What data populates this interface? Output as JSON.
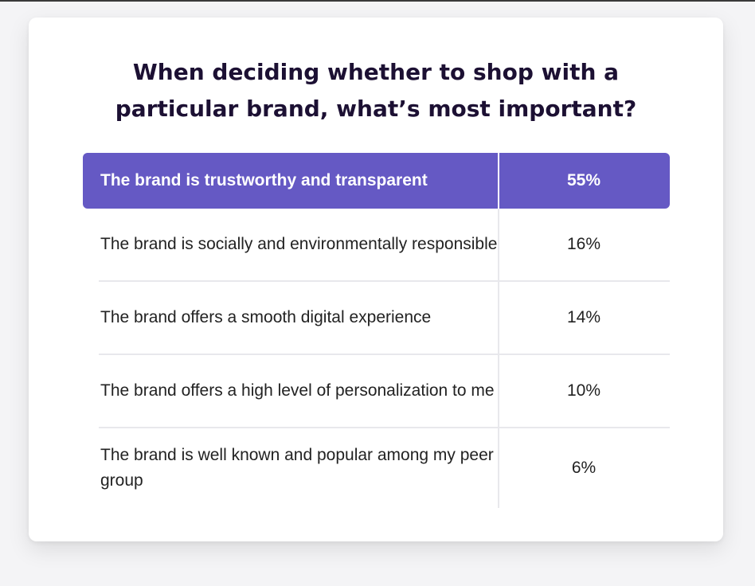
{
  "chart_data": {
    "type": "table",
    "title": "When deciding whether to shop with a particular brand, what’s most important?",
    "title_lines": [
      "When deciding whether to shop with a",
      "particular brand, what’s most important?"
    ],
    "rows": [
      {
        "label": "The brand is trustworthy and transparent",
        "value": "55%",
        "highlighted": true
      },
      {
        "label": "The brand is socially and environmentally responsible",
        "value": "16%"
      },
      {
        "label": "The brand offers a smooth digital experience",
        "value": "14%"
      },
      {
        "label": "The brand offers a high level of personalization to me",
        "value": "10%"
      },
      {
        "label": "The brand is well known and popular among my peer group",
        "value": "6%"
      }
    ],
    "values": [
      55,
      16,
      14,
      10,
      6
    ],
    "colors": {
      "header_bg": "#6559c4",
      "title": "#1c1033",
      "text": "#222222",
      "divider": "#e8e8ec"
    }
  }
}
